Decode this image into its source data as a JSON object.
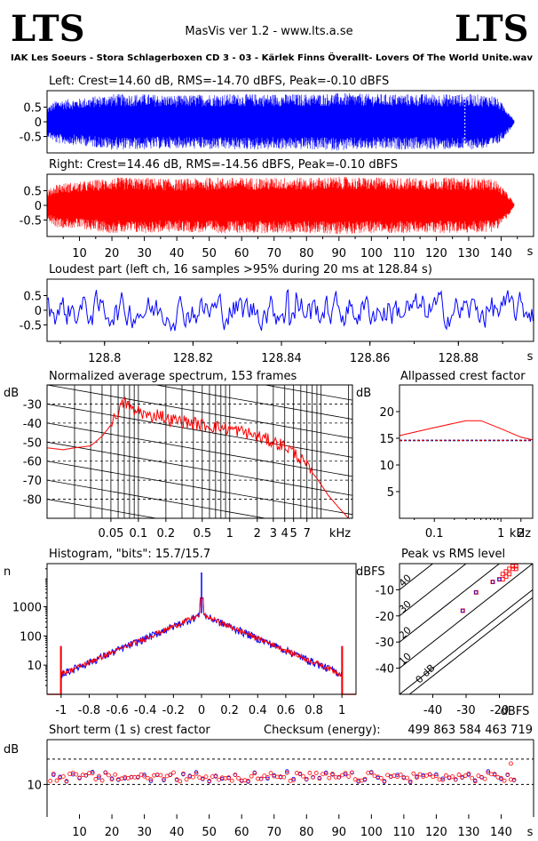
{
  "header": {
    "logo_left": "LTS",
    "logo_right": "LTS",
    "app_title": "MasVis ver 1.2 - www.lts.a.se",
    "track_title": "IAK Les Soeurs - Stora Schlagerboxen CD 3 - 03 - Kärlek Finns Överallt- Lovers Of The World Unite.wav"
  },
  "colors": {
    "left": "#0000ff",
    "right": "#ff0000",
    "navy": "#000080",
    "grid": "#000000"
  },
  "chart_data": [
    {
      "id": "left_waveform",
      "type": "area",
      "title": "Left: Crest=14.60 dB, RMS=-14.70 dBFS, Peak=-0.10 dBFS",
      "crest_db": 14.6,
      "rms_dbfs": -14.7,
      "peak_dbfs": -0.1,
      "yticks": [
        "0.5",
        "0",
        "-0.5"
      ],
      "ylim": [
        -1,
        1
      ],
      "xlim": [
        0,
        150
      ],
      "duration_s": 144,
      "envelope": [
        [
          0,
          0.5
        ],
        [
          3,
          0.75
        ],
        [
          10,
          0.8
        ],
        [
          20,
          0.95
        ],
        [
          30,
          0.95
        ],
        [
          40,
          0.9
        ],
        [
          50,
          0.95
        ],
        [
          60,
          0.95
        ],
        [
          70,
          0.95
        ],
        [
          80,
          0.95
        ],
        [
          90,
          0.98
        ],
        [
          100,
          0.95
        ],
        [
          110,
          0.95
        ],
        [
          120,
          0.95
        ],
        [
          130,
          0.95
        ],
        [
          138,
          0.9
        ],
        [
          141,
          0.55
        ],
        [
          143,
          0.25
        ],
        [
          144,
          0.05
        ]
      ],
      "marker_s": 128.84
    },
    {
      "id": "right_waveform",
      "type": "area",
      "title": "Right: Crest=14.46 dB, RMS=-14.56 dBFS, Peak=-0.10 dBFS",
      "crest_db": 14.46,
      "rms_dbfs": -14.56,
      "peak_dbfs": -0.1,
      "yticks": [
        "0.5",
        "0",
        "-0.5"
      ],
      "ylim": [
        -1,
        1
      ],
      "xlim": [
        0,
        150
      ],
      "duration_s": 144,
      "xticks": [
        "10",
        "20",
        "30",
        "40",
        "50",
        "60",
        "70",
        "80",
        "90",
        "100",
        "110",
        "120",
        "130",
        "140"
      ],
      "xticks_values": [
        10,
        20,
        30,
        40,
        50,
        60,
        70,
        80,
        90,
        100,
        110,
        120,
        130,
        140
      ],
      "xunit": "s",
      "envelope": [
        [
          0,
          0.5
        ],
        [
          3,
          0.75
        ],
        [
          10,
          0.8
        ],
        [
          20,
          0.95
        ],
        [
          30,
          0.95
        ],
        [
          40,
          0.9
        ],
        [
          50,
          0.95
        ],
        [
          60,
          0.95
        ],
        [
          70,
          0.95
        ],
        [
          80,
          0.95
        ],
        [
          90,
          0.98
        ],
        [
          100,
          0.95
        ],
        [
          110,
          0.95
        ],
        [
          120,
          0.95
        ],
        [
          130,
          0.95
        ],
        [
          138,
          0.9
        ],
        [
          141,
          0.55
        ],
        [
          143,
          0.25
        ],
        [
          144,
          0.05
        ]
      ]
    },
    {
      "id": "loudest_part",
      "type": "line",
      "title": "Loudest part (left  ch, 16 samples >95% during 20 ms at 128.84 s)",
      "yticks": [
        "0.5",
        "0",
        "-0.5"
      ],
      "ylim": [
        -1,
        1
      ],
      "xlim": [
        128.787,
        128.897
      ],
      "xticks": [
        "128.8",
        "128.82",
        "128.84",
        "128.86",
        "128.88"
      ],
      "xticks_values": [
        128.8,
        128.82,
        128.84,
        128.86,
        128.88
      ],
      "xunit": "s"
    },
    {
      "id": "avg_spectrum",
      "type": "line",
      "title": "Normalized average spectrum, 153 frames",
      "ylabel": "dB",
      "ylim": [
        -90,
        -20
      ],
      "yticks": [
        "-30",
        "-40",
        "-50",
        "-60",
        "-70",
        "-80"
      ],
      "yticks_values": [
        -30,
        -40,
        -50,
        -60,
        -70,
        -80
      ],
      "xlim": [
        0.01,
        22.05
      ],
      "xscale": "log",
      "xticks": [
        "0.05",
        "0.1",
        "0.2",
        "0.5",
        "1",
        "2",
        "3",
        "4",
        "5",
        "7"
      ],
      "xticks_values": [
        0.05,
        0.1,
        0.2,
        0.5,
        1,
        2,
        3,
        4,
        5,
        7
      ],
      "xunit": "kHz",
      "series": [
        {
          "values": [
            [
              0.01,
              -53
            ],
            [
              0.015,
              -54
            ],
            [
              0.02,
              -53
            ],
            [
              0.03,
              -52
            ],
            [
              0.04,
              -47
            ],
            [
              0.05,
              -41
            ],
            [
              0.06,
              -34
            ],
            [
              0.07,
              -29
            ],
            [
              0.08,
              -31
            ],
            [
              0.09,
              -35
            ],
            [
              0.1,
              -33
            ],
            [
              0.13,
              -37
            ],
            [
              0.17,
              -35
            ],
            [
              0.2,
              -38
            ],
            [
              0.3,
              -39
            ],
            [
              0.5,
              -41
            ],
            [
              0.7,
              -42
            ],
            [
              1,
              -43
            ],
            [
              1.5,
              -45
            ],
            [
              2,
              -47
            ],
            [
              3,
              -50
            ],
            [
              4,
              -52
            ],
            [
              5,
              -55
            ],
            [
              6,
              -59
            ],
            [
              7,
              -63
            ],
            [
              9,
              -69
            ],
            [
              12,
              -78
            ],
            [
              16,
              -85
            ],
            [
              20,
              -90
            ]
          ]
        }
      ]
    },
    {
      "id": "allpassed_crest",
      "type": "line",
      "title": "Allpassed crest factor",
      "ylabel": "dB",
      "ylim": [
        0,
        25
      ],
      "yticks": [
        "20",
        "15",
        "10",
        "5"
      ],
      "yticks_values": [
        20,
        15,
        10,
        5
      ],
      "xlim": [
        0.03,
        3
      ],
      "xscale": "log",
      "xticks": [
        "0.1",
        "1",
        "2"
      ],
      "xticks_values": [
        0.1,
        1,
        2
      ],
      "xunit": "kHz",
      "series": [
        {
          "values": [
            [
              0.03,
              15.5
            ],
            [
              0.1,
              17
            ],
            [
              0.3,
              18.3
            ],
            [
              0.5,
              18.3
            ],
            [
              1,
              16.8
            ],
            [
              2,
              15.2
            ],
            [
              3,
              14.7
            ]
          ]
        }
      ],
      "reference": 14.6
    },
    {
      "id": "histogram",
      "type": "line",
      "title": "Histogram, \"bits\": 15.7/15.7",
      "ylabel": "n",
      "ylim": [
        1,
        30000
      ],
      "yscale": "log",
      "yticks": [
        "1000",
        "100",
        "10"
      ],
      "yticks_values": [
        1000,
        100,
        10
      ],
      "xlim": [
        -1.1,
        1.1
      ],
      "xticks": [
        "-1",
        "-0.8",
        "-0.6",
        "-0.4",
        "-0.2",
        "0",
        "0.2",
        "0.4",
        "0.6",
        "0.8",
        "1"
      ],
      "xticks_values": [
        -1,
        -0.8,
        -0.6,
        -0.4,
        -0.2,
        0,
        0.2,
        0.4,
        0.6,
        0.8,
        1
      ]
    },
    {
      "id": "peak_vs_rms",
      "type": "scatter",
      "title": "Peak vs RMS level",
      "ylabel": "dBFS",
      "xunit": "dBFS",
      "xlim": [
        -50,
        -10
      ],
      "ylim": [
        -50,
        0
      ],
      "xticks": [
        "-40",
        "-30",
        "-20"
      ],
      "xticks_values": [
        -40,
        -30,
        -20
      ],
      "yticks": [
        "-10",
        "-20",
        "-30",
        "-40"
      ],
      "yticks_values": [
        -10,
        -20,
        -30,
        -40
      ],
      "diagonal_labels": [
        "40",
        "30",
        "20",
        "10",
        "0 dB"
      ],
      "points": [
        [
          -31,
          -18
        ],
        [
          -27,
          -11
        ],
        [
          -22,
          -7
        ],
        [
          -20,
          -6
        ],
        [
          -19,
          -4
        ],
        [
          -18,
          -3
        ],
        [
          -17,
          -2
        ],
        [
          -17,
          -4
        ],
        [
          -16,
          -2
        ],
        [
          -19,
          -6
        ],
        [
          -18,
          -5
        ],
        [
          -16,
          -1
        ],
        [
          -15,
          -1
        ],
        [
          -15,
          -2
        ]
      ]
    },
    {
      "id": "short_term_crest",
      "type": "scatter",
      "title": "Short term (1 s) crest factor",
      "checksum_label": "Checksum (energy):",
      "checksum_value": "499 863 584 463 719",
      "ylabel": "dB",
      "ylim": [
        0,
        25
      ],
      "yticks": [
        "10"
      ],
      "yticks_values": [
        10
      ],
      "xlim": [
        0,
        150
      ],
      "xticks": [
        "10",
        "20",
        "30",
        "40",
        "50",
        "60",
        "70",
        "80",
        "90",
        "100",
        "110",
        "120",
        "130",
        "140"
      ],
      "xticks_values": [
        10,
        20,
        30,
        40,
        50,
        60,
        70,
        80,
        90,
        100,
        110,
        120,
        130,
        140
      ],
      "xunit": "s",
      "mean": 12.5,
      "spread": 1.5
    }
  ]
}
